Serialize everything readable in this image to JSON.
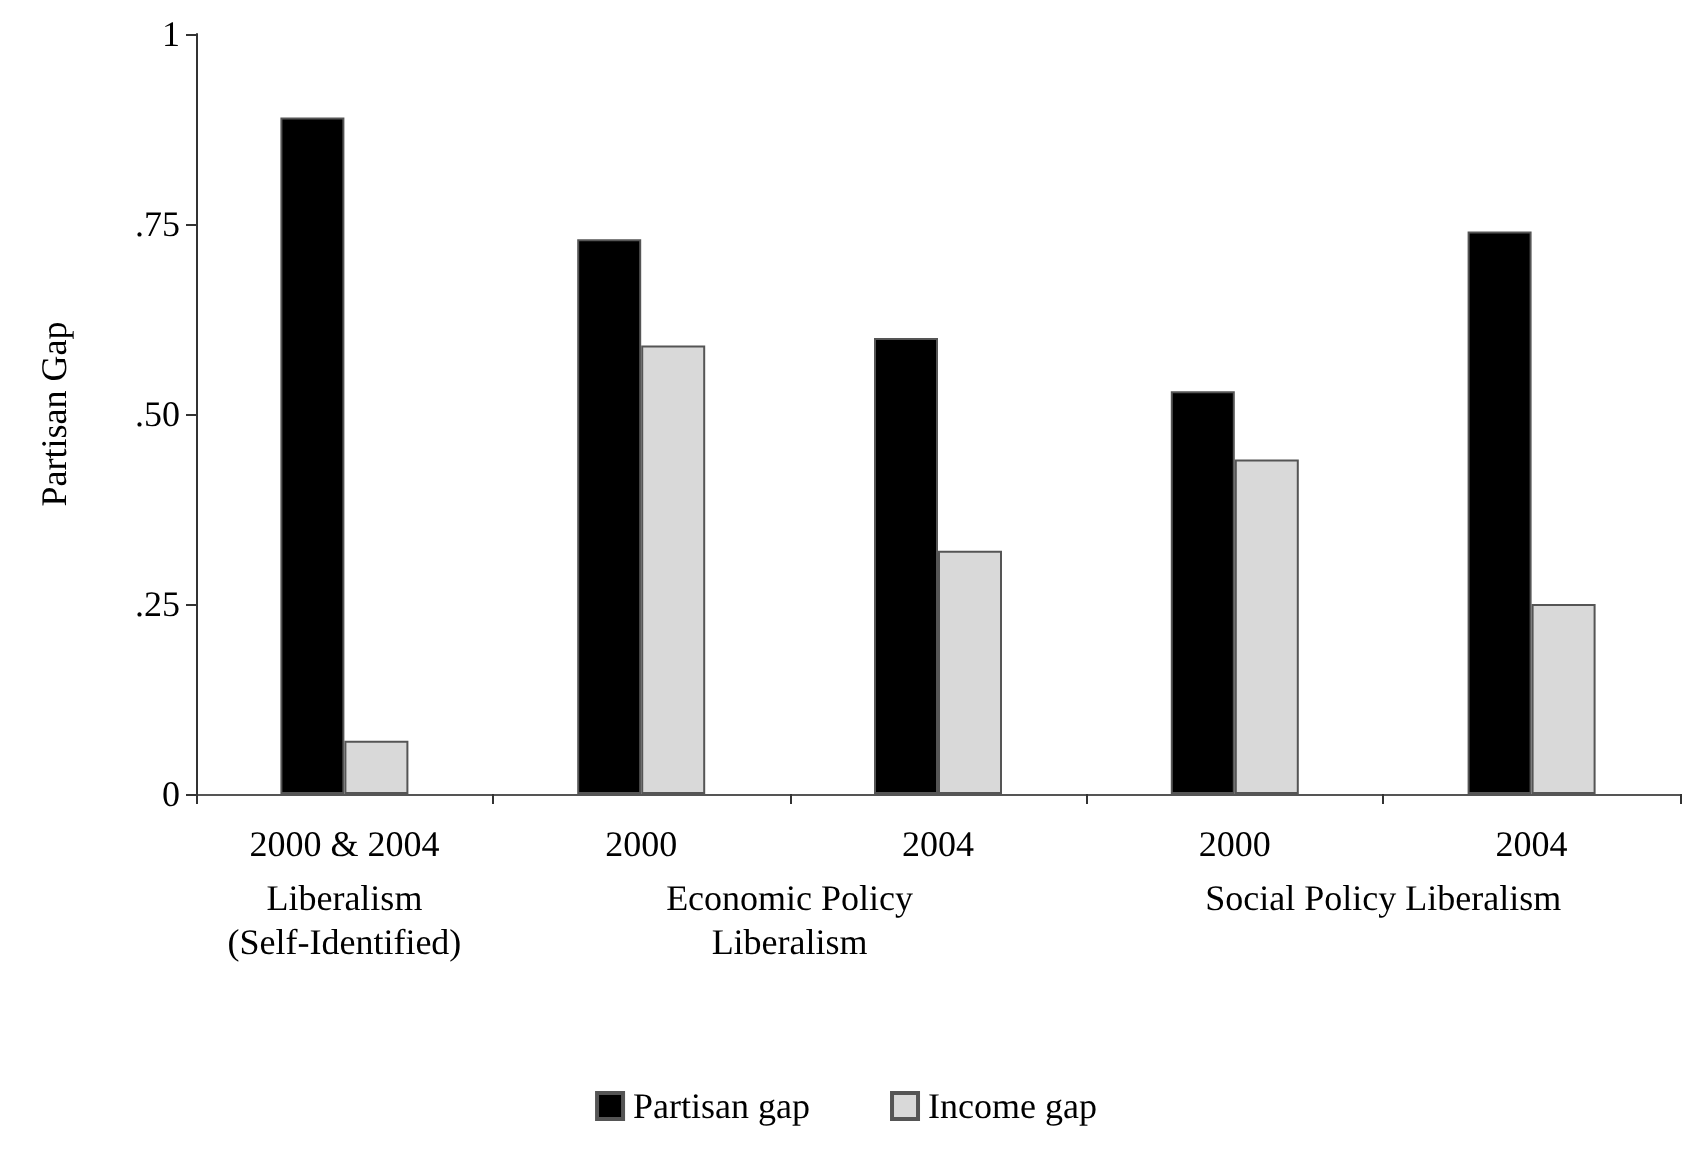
{
  "chart_data": {
    "type": "bar",
    "ylabel": "Partisan Gap",
    "categories": [
      "2000 & 2004",
      "2000",
      "2004",
      "2000",
      "2004"
    ],
    "series": [
      {
        "name": "Partisan gap",
        "color": "#000000",
        "values": [
          0.89,
          0.73,
          0.6,
          0.53,
          0.74
        ]
      },
      {
        "name": "Income gap",
        "color": "#d9d9d9",
        "values": [
          0.07,
          0.59,
          0.32,
          0.44,
          0.25
        ]
      }
    ],
    "ylim": [
      0,
      1
    ],
    "yticks": [
      {
        "value": 0,
        "label": "0"
      },
      {
        "value": 0.25,
        "label": ".25"
      },
      {
        "value": 0.5,
        "label": ".50"
      },
      {
        "value": 0.75,
        "label": ".75"
      },
      {
        "value": 1,
        "label": "1"
      }
    ],
    "annotations": [
      "Liberalism\n(Self-Identified)",
      "Economic Policy\nLiberalism",
      "Social Policy Liberalism"
    ],
    "grid": false,
    "legend": "bottom"
  }
}
